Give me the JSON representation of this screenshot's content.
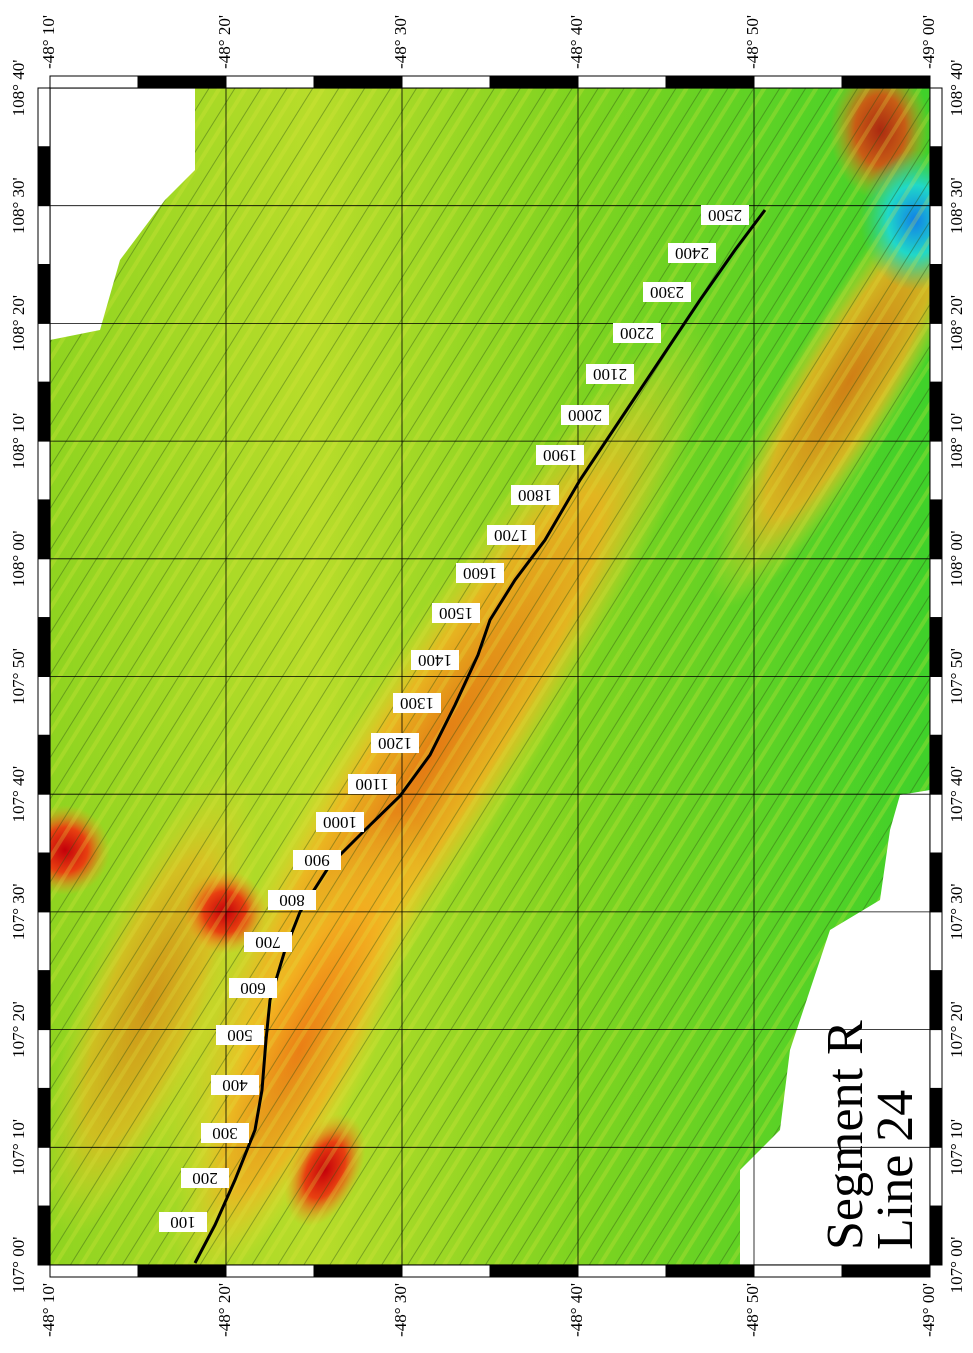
{
  "map": {
    "title": [
      "Segment R",
      "Line 24"
    ],
    "lon_labels": [
      "-48° 10'",
      "-48° 20'",
      "-48° 30'",
      "-48° 40'",
      "-48° 50'",
      "-49° 00'"
    ],
    "lat_labels": [
      "108° 40'",
      "108° 30'",
      "108° 20'",
      "108° 10'",
      "108° 00'",
      "107° 50'",
      "107° 40'",
      "107° 30'",
      "107° 20'",
      "107° 10'",
      "107° 00'"
    ],
    "track_labels": [
      "100",
      "200",
      "300",
      "400",
      "500",
      "600",
      "700",
      "800",
      "900",
      "1000",
      "1100",
      "1200",
      "1300",
      "1400",
      "1500",
      "1600",
      "1700",
      "1800",
      "1900",
      "2000",
      "2100",
      "2200",
      "2300",
      "2400",
      "2500"
    ]
  }
}
